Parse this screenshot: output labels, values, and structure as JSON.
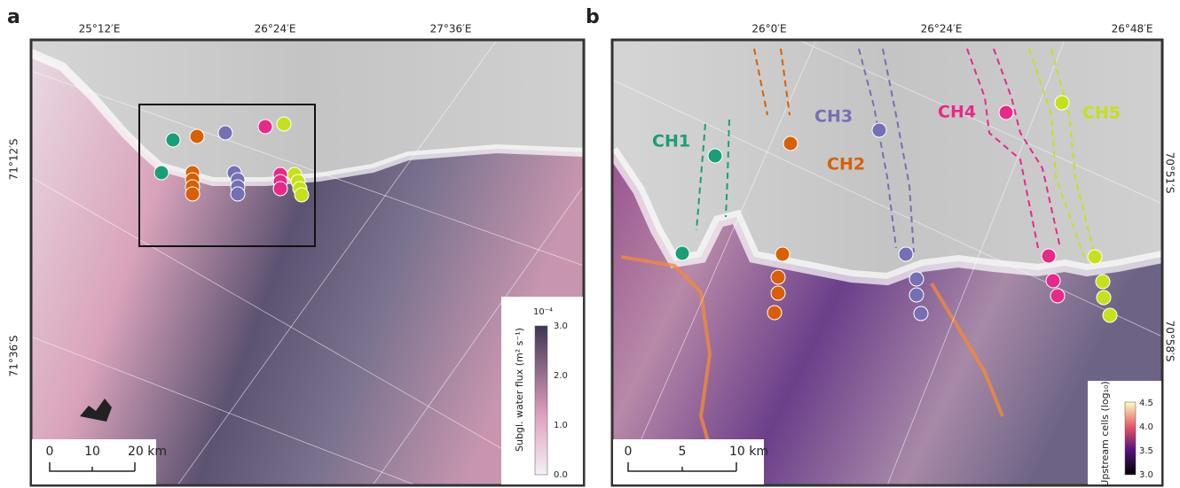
{
  "panels": [
    {
      "letter": "a",
      "lon_labels": [
        "25°12′E",
        "26°24′E",
        "27°36′E"
      ],
      "lat_labels": [
        "71°12′S",
        "71°36′S"
      ],
      "colorbar": {
        "label": "Subgl. water flux (m² s⁻¹)",
        "exponent": "10⁻⁴",
        "ticks": [
          "0.0",
          "1.0",
          "2.0",
          "3.0"
        ]
      },
      "scale_bar": {
        "ticks": [
          "0",
          "10",
          "20 km"
        ]
      }
    },
    {
      "letter": "b",
      "lon_labels": [
        "26°0′E",
        "26°24′E",
        "26°48′E"
      ],
      "lat_labels": [
        "70°51′S",
        "70°58′S"
      ],
      "channels": [
        {
          "label": "CH1",
          "color": "#1b9e77"
        },
        {
          "label": "CH2",
          "color": "#d95f02"
        },
        {
          "label": "CH3",
          "color": "#7570b3"
        },
        {
          "label": "CH4",
          "color": "#e7298a"
        },
        {
          "label": "CH5",
          "color": "#c6e01a"
        }
      ],
      "colorbar": {
        "label": "Upstream cells (log₁₀)",
        "ticks": [
          "3.0",
          "3.5",
          "4.0",
          "4.5"
        ]
      },
      "scale_bar": {
        "ticks": [
          "0",
          "5",
          "10 km"
        ]
      }
    }
  ]
}
